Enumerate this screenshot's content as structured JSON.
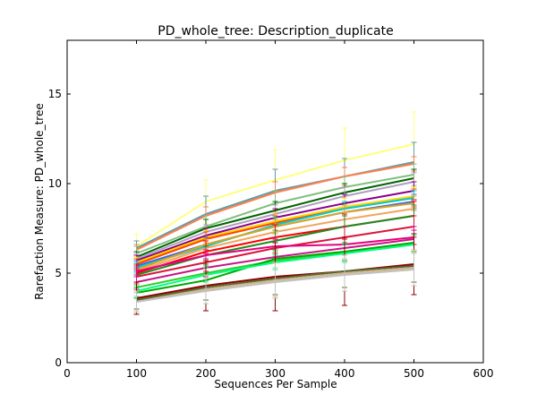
{
  "chart_data": {
    "type": "line",
    "title": "PD_whole_tree: Description_duplicate",
    "xlabel": "Sequences Per Sample",
    "ylabel": "Rarefaction Measure: PD_whole_tree",
    "xlim": [
      0,
      600
    ],
    "ylim": [
      0,
      18
    ],
    "xticks": [
      0,
      100,
      200,
      300,
      400,
      500,
      600
    ],
    "yticks": [
      0,
      5,
      10,
      15
    ],
    "grid": false,
    "legend": "none",
    "x": [
      100,
      200,
      300,
      400,
      500
    ],
    "series": [
      {
        "color": "#ffff80",
        "values": [
          6.5,
          9.0,
          10.2,
          11.3,
          12.2
        ],
        "err": [
          0.7,
          1.2,
          1.7,
          1.8,
          1.8
        ]
      },
      {
        "color": "#5f9ea0",
        "values": [
          6.4,
          8.3,
          9.6,
          10.4,
          11.2
        ],
        "err": [
          0.4,
          1.0,
          1.2,
          1.0,
          1.1
        ]
      },
      {
        "color": "#ff7f50",
        "values": [
          6.3,
          8.2,
          9.5,
          10.4,
          11.1
        ],
        "err": [
          0.3,
          0.5,
          0.6,
          0.5,
          0.4
        ]
      },
      {
        "color": "#80c080",
        "values": [
          6.1,
          7.6,
          8.9,
          9.8,
          10.5
        ],
        "err": [
          0.4,
          0.6,
          0.7,
          0.6,
          0.6
        ]
      },
      {
        "color": "#006400",
        "values": [
          5.9,
          7.5,
          8.5,
          9.5,
          10.3
        ],
        "err": [
          0.3,
          0.5,
          0.5,
          0.5,
          0.5
        ]
      },
      {
        "color": "#b0a0c0",
        "values": [
          5.8,
          7.3,
          8.3,
          9.3,
          10.1
        ],
        "err": [
          0.3,
          0.4,
          0.5,
          0.5,
          0.5
        ]
      },
      {
        "color": "#8b008b",
        "values": [
          5.7,
          7.1,
          8.1,
          8.9,
          9.6
        ],
        "err": [
          0.3,
          0.4,
          0.5,
          0.5,
          0.5
        ]
      },
      {
        "color": "#ffd700",
        "values": [
          5.6,
          7.0,
          7.9,
          8.7,
          9.3
        ],
        "err": [
          0.3,
          0.4,
          0.5,
          0.5,
          0.5
        ]
      },
      {
        "color": "#ff4500",
        "values": [
          5.5,
          6.9,
          7.8,
          8.6,
          9.2
        ],
        "err": [
          0.3,
          0.4,
          0.4,
          0.4,
          0.5
        ]
      },
      {
        "color": "#4169e1",
        "values": [
          5.4,
          6.6,
          7.6,
          8.4,
          9.0
        ],
        "err": [
          0.3,
          0.4,
          0.4,
          0.4,
          0.4
        ]
      },
      {
        "color": "#00ced1",
        "values": [
          5.3,
          6.5,
          7.7,
          8.6,
          9.2
        ],
        "err": [
          0.3,
          0.4,
          0.4,
          0.4,
          0.4
        ]
      },
      {
        "color": "#daa520",
        "values": [
          5.2,
          6.6,
          7.6,
          8.4,
          8.9
        ],
        "err": [
          0.3,
          0.3,
          0.4,
          0.4,
          0.4
        ]
      },
      {
        "color": "#f4a460",
        "values": [
          5.1,
          6.4,
          7.3,
          8.0,
          8.6
        ],
        "err": [
          0.3,
          0.3,
          0.4,
          0.4,
          0.4
        ]
      },
      {
        "color": "#ff0000",
        "values": [
          5.0,
          6.2,
          7.0,
          7.6,
          8.2
        ],
        "err": [
          0.5,
          0.6,
          0.7,
          0.7,
          0.8
        ]
      },
      {
        "color": "#228b22",
        "values": [
          4.9,
          6.0,
          6.8,
          7.6,
          8.2
        ],
        "err": [
          0.4,
          0.5,
          0.6,
          0.6,
          0.6
        ]
      },
      {
        "color": "#dc143c",
        "values": [
          4.8,
          5.6,
          6.4,
          7.0,
          7.6
        ],
        "err": [
          0.4,
          0.5,
          0.6,
          0.6,
          0.6
        ]
      },
      {
        "color": "#e6007e",
        "values": [
          5.1,
          6.0,
          6.5,
          6.6,
          7.0
        ],
        "err": [
          0.3,
          0.3,
          0.4,
          0.4,
          0.4
        ]
      },
      {
        "color": "#c71585",
        "values": [
          4.5,
          5.3,
          5.9,
          6.4,
          6.9
        ],
        "err": [
          0.4,
          0.5,
          0.6,
          0.6,
          0.7
        ]
      },
      {
        "color": "#32cd32",
        "values": [
          4.2,
          5.0,
          5.7,
          6.1,
          6.6
        ],
        "err": [
          0.3,
          0.4,
          0.5,
          0.5,
          0.5
        ]
      },
      {
        "color": "#00aa00",
        "values": [
          3.9,
          4.6,
          5.8,
          6.2,
          6.7
        ],
        "err": [
          0.3,
          0.4,
          0.5,
          0.5,
          0.5
        ]
      },
      {
        "color": "#00ff7f",
        "values": [
          4.0,
          4.9,
          5.6,
          6.1,
          6.6
        ],
        "err": [
          0.3,
          0.4,
          0.4,
          0.5,
          0.5
        ]
      },
      {
        "color": "#8b0000",
        "values": [
          3.6,
          4.3,
          4.8,
          5.1,
          5.5
        ],
        "err": [
          0.9,
          1.4,
          1.9,
          1.9,
          1.7
        ]
      },
      {
        "color": "#556b2f",
        "values": [
          3.5,
          4.2,
          4.7,
          5.1,
          5.4
        ],
        "err": [
          0.5,
          0.7,
          0.9,
          0.9,
          0.9
        ]
      },
      {
        "color": "#d2b48c",
        "values": [
          3.4,
          4.1,
          4.6,
          5.0,
          5.3
        ],
        "err": [
          0.6,
          0.8,
          1.0,
          1.0,
          1.0
        ]
      },
      {
        "color": "#c0c0c0",
        "values": [
          3.4,
          4.0,
          4.5,
          4.9,
          5.2
        ],
        "err": [
          0.5,
          0.7,
          0.8,
          0.9,
          0.9
        ]
      }
    ]
  }
}
